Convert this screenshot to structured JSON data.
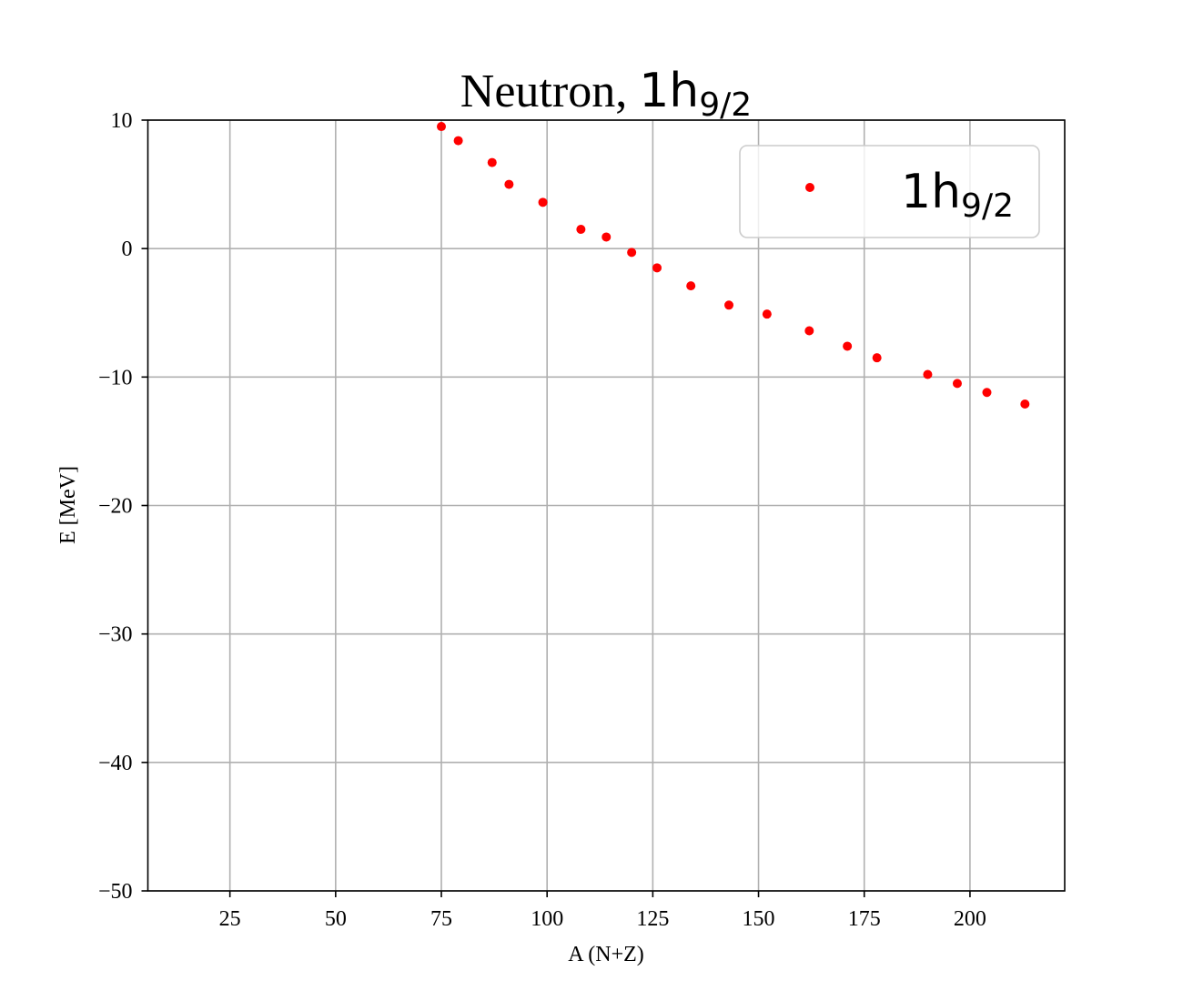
{
  "chart_data": {
    "type": "scatter",
    "title": {
      "prefix": "Neutron, ",
      "orbital": "1h",
      "subscript": "9/2"
    },
    "xlabel": "A (N+Z)",
    "ylabel": "E [MeV]",
    "xlim": [
      5.6,
      222.4
    ],
    "ylim": [
      -50,
      10
    ],
    "xticks": [
      25,
      50,
      75,
      100,
      125,
      150,
      175,
      200
    ],
    "yticks": [
      10,
      0,
      -10,
      -20,
      -30,
      -40,
      -50
    ],
    "ytick_labels": [
      "10",
      "0",
      "−10",
      "−20",
      "−30",
      "−40",
      "−50"
    ],
    "grid": true,
    "legend_position": "upper right",
    "series": [
      {
        "name": "1h 9/2",
        "legend_main": "1h",
        "legend_sub": "9/2",
        "color": "#ff0000",
        "x": [
          75,
          79,
          87,
          91,
          99,
          108,
          114,
          120,
          126,
          134,
          143,
          152,
          162,
          171,
          178,
          190,
          197,
          204,
          213
        ],
        "y": [
          9.5,
          8.4,
          6.7,
          5.0,
          3.6,
          1.5,
          0.9,
          -0.3,
          -1.5,
          -2.9,
          -4.4,
          -5.1,
          -6.4,
          -7.6,
          -8.5,
          -9.8,
          -10.5,
          -11.2,
          -12.1
        ]
      }
    ]
  }
}
